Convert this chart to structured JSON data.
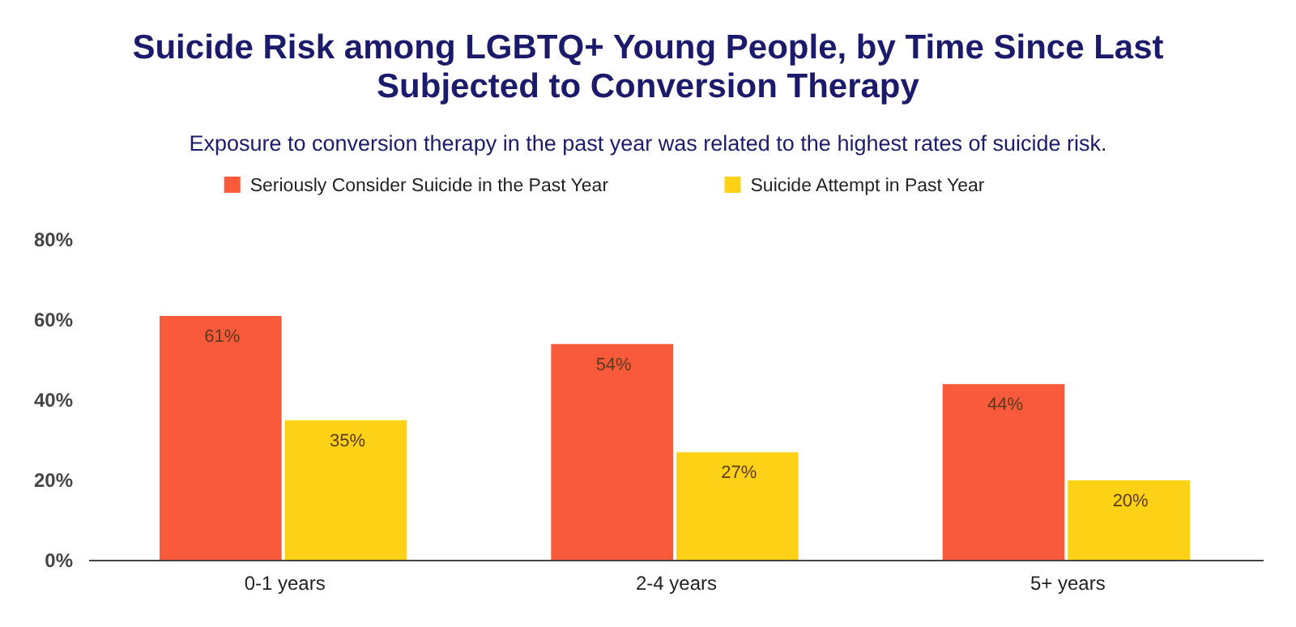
{
  "chart_data": {
    "type": "bar",
    "title": "Suicide Risk among LGBTQ+ Young People, by Time Since Last Subjected to Conversion Therapy",
    "subtitle": "Exposure to conversion therapy in the past year was related to the highest rates of suicide risk.",
    "categories": [
      "0-1 years",
      "2-4 years",
      "5+ years"
    ],
    "series": [
      {
        "name": "Seriously Consider Suicide in the Past Year",
        "color": "#fa5a3c",
        "values": [
          61,
          54,
          44
        ],
        "value_labels": [
          "61%",
          "54%",
          "44%"
        ]
      },
      {
        "name": "Suicide Attempt in Past Year",
        "color": "#fcd116",
        "values": [
          35,
          27,
          20
        ],
        "value_labels": [
          "35%",
          "27%",
          "20%"
        ]
      }
    ],
    "ylim": [
      0,
      80
    ],
    "yticks": [
      {
        "value": 0,
        "label": "0%"
      },
      {
        "value": 20,
        "label": "20%"
      },
      {
        "value": 40,
        "label": "40%"
      },
      {
        "value": 60,
        "label": "60%"
      },
      {
        "value": 80,
        "label": "80%"
      }
    ],
    "legend": "top"
  }
}
